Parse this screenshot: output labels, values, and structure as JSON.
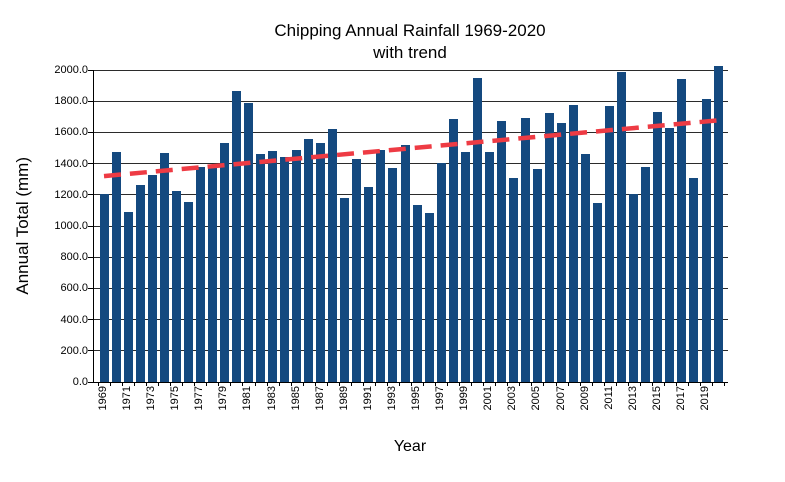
{
  "chart_data": {
    "type": "bar",
    "title": "Chipping Annual Rainfall 1969-2020",
    "subtitle": "with trend",
    "xlabel": "Year",
    "ylabel": "Annual Total (mm)",
    "ylim": [
      0,
      2000
    ],
    "ytick_step": 200,
    "ytick_labels": [
      "0.0",
      "200.0",
      "400.0",
      "600.0",
      "800.0",
      "1000.0",
      "1200.0",
      "1400.0",
      "1600.0",
      "1800.0",
      "2000.0"
    ],
    "grid": "horizontal",
    "legend": "none",
    "x_labels_shown": "odd years only, rotated 90deg",
    "bar_color": "#14497F",
    "trend_color": "#EE3B44",
    "categories": [
      1969,
      1970,
      1971,
      1972,
      1973,
      1974,
      1975,
      1976,
      1977,
      1978,
      1979,
      1980,
      1981,
      1982,
      1983,
      1984,
      1985,
      1986,
      1987,
      1988,
      1989,
      1990,
      1991,
      1992,
      1993,
      1994,
      1995,
      1996,
      1997,
      1998,
      1999,
      2000,
      2001,
      2002,
      2003,
      2004,
      2005,
      2006,
      2007,
      2008,
      2009,
      2010,
      2011,
      2012,
      2013,
      2014,
      2015,
      2016,
      2017,
      2018,
      2019,
      2020
    ],
    "values": [
      1205,
      1475,
      1090,
      1263,
      1330,
      1465,
      1225,
      1155,
      1380,
      1390,
      1535,
      1865,
      1790,
      1460,
      1480,
      1440,
      1490,
      1555,
      1530,
      1620,
      1180,
      1430,
      1250,
      1485,
      1370,
      1520,
      1135,
      1085,
      1405,
      1685,
      1473,
      1948,
      1473,
      1670,
      1310,
      1690,
      1365,
      1723,
      1663,
      1777,
      1460,
      1145,
      1772,
      1990,
      1205,
      1376,
      1733,
      1627,
      1943,
      1310,
      1815,
      2025
    ],
    "trend": {
      "style": "dashed",
      "start_year": 1969,
      "end_year": 2020,
      "start_value": 1320,
      "end_value": 1677
    }
  }
}
